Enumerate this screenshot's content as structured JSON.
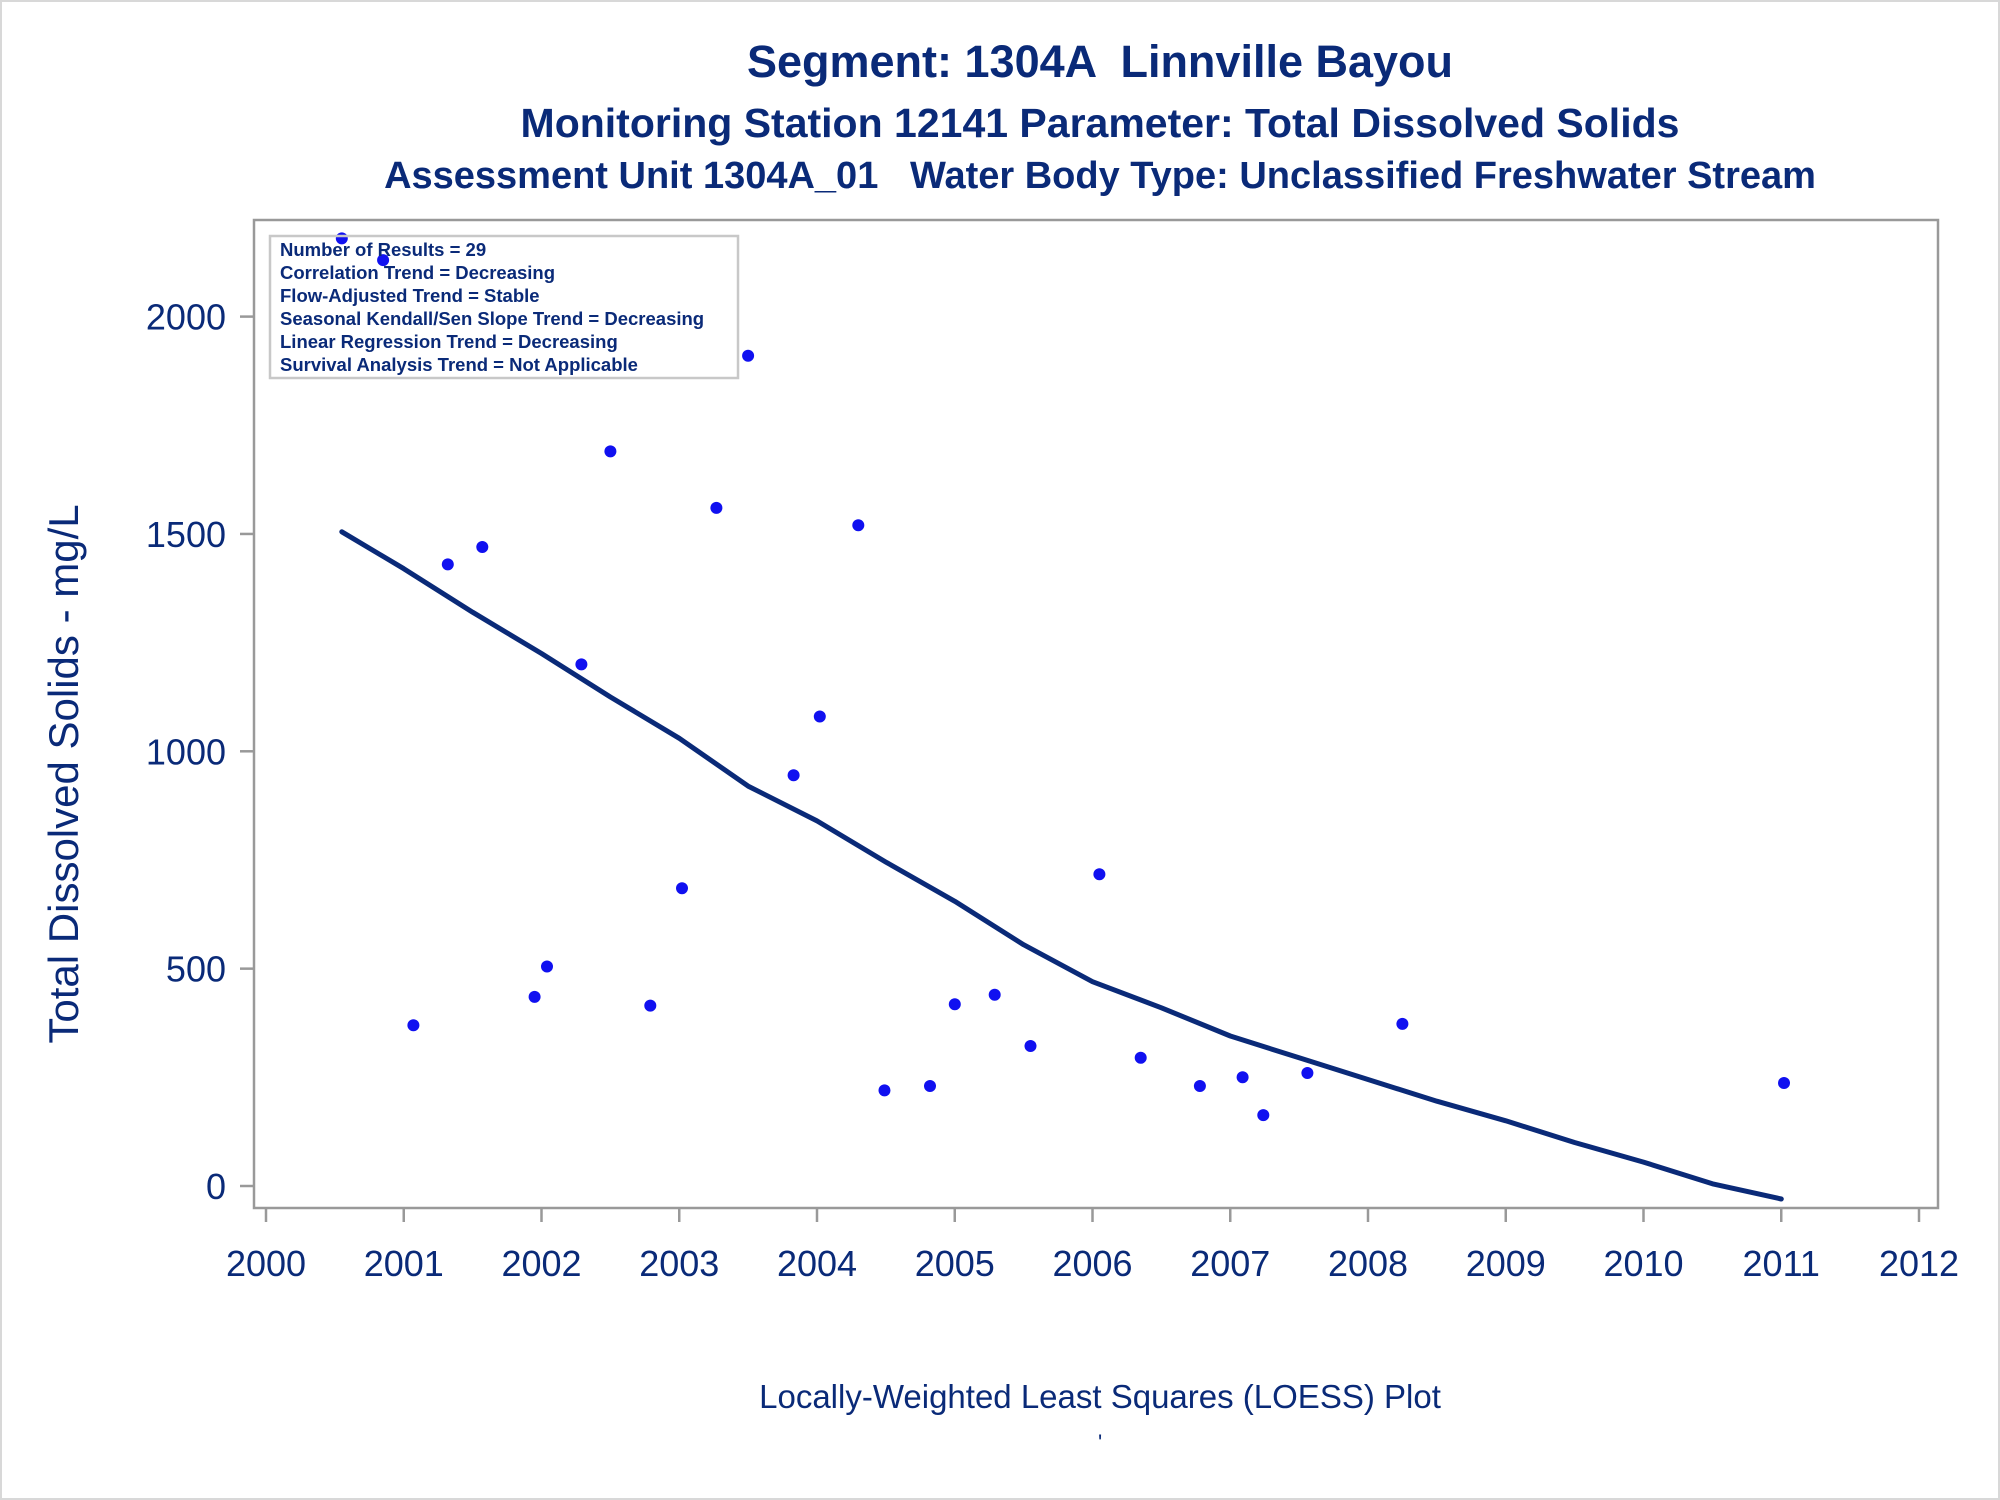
{
  "titles": {
    "line1": "Segment: 1304A  Linnville Bayou",
    "line2": "Monitoring Station 12141 Parameter: Total Dissolved Solids",
    "line3": "Assessment Unit 1304A_01   Water Body Type: Unclassified Freshwater Stream"
  },
  "footnote": "Locally-Weighted Least Squares (LOESS) Plot",
  "footnote_mark": "'",
  "colors": {
    "text": "#0a2a78",
    "points": "#1010f0",
    "trend_line": "#0a2a78",
    "frame": "#999999"
  },
  "chart_data": {
    "type": "scatter",
    "ylabel": "Total Dissolved Solids - mg/L",
    "xlabel": "",
    "xlim": [
      2000,
      2012
    ],
    "ylim": [
      -55,
      2215
    ],
    "x_ticks": [
      2000,
      2001,
      2002,
      2003,
      2004,
      2005,
      2006,
      2007,
      2008,
      2009,
      2010,
      2011,
      2012
    ],
    "y_ticks": [
      0,
      500,
      1000,
      1500,
      2000
    ],
    "grid": false,
    "legend": {
      "placement": "top-left",
      "lines": [
        "Number of Results = 29",
        "Correlation Trend = Decreasing",
        "Flow-Adjusted Trend = Stable",
        "Seasonal Kendall/Sen Slope Trend = Decreasing",
        "Linear Regression Trend = Decreasing",
        "Survival Analysis Trend = Not Applicable"
      ]
    },
    "points": {
      "x": [
        2000.55,
        2000.85,
        2001.07,
        2001.32,
        2001.57,
        2001.95,
        2002.04,
        2002.29,
        2002.5,
        2002.79,
        2003.02,
        2003.27,
        2003.5,
        2003.83,
        2004.02,
        2004.3,
        2004.49,
        2004.82,
        2005.0,
        2005.29,
        2005.55,
        2006.05,
        2006.35,
        2006.78,
        2007.09,
        2007.24,
        2007.56,
        2008.25,
        2011.02
      ],
      "y": [
        2180,
        2130,
        370,
        1430,
        1470,
        435,
        505,
        1200,
        1690,
        415,
        685,
        1560,
        1910,
        945,
        1080,
        1520,
        220,
        230,
        418,
        440,
        322,
        717,
        295,
        230,
        250,
        163,
        260,
        373,
        237
      ]
    },
    "loess": {
      "x": [
        2000.55,
        2001.0,
        2001.5,
        2002.0,
        2002.5,
        2003.0,
        2003.5,
        2004.0,
        2004.5,
        2005.0,
        2005.5,
        2006.0,
        2006.5,
        2007.0,
        2007.5,
        2008.0,
        2008.5,
        2009.0,
        2009.5,
        2010.0,
        2010.5,
        2011.0
      ],
      "y": [
        1505,
        1420,
        1320,
        1225,
        1125,
        1030,
        920,
        840,
        745,
        655,
        555,
        470,
        410,
        345,
        295,
        245,
        195,
        150,
        100,
        55,
        5,
        -30
      ]
    }
  }
}
